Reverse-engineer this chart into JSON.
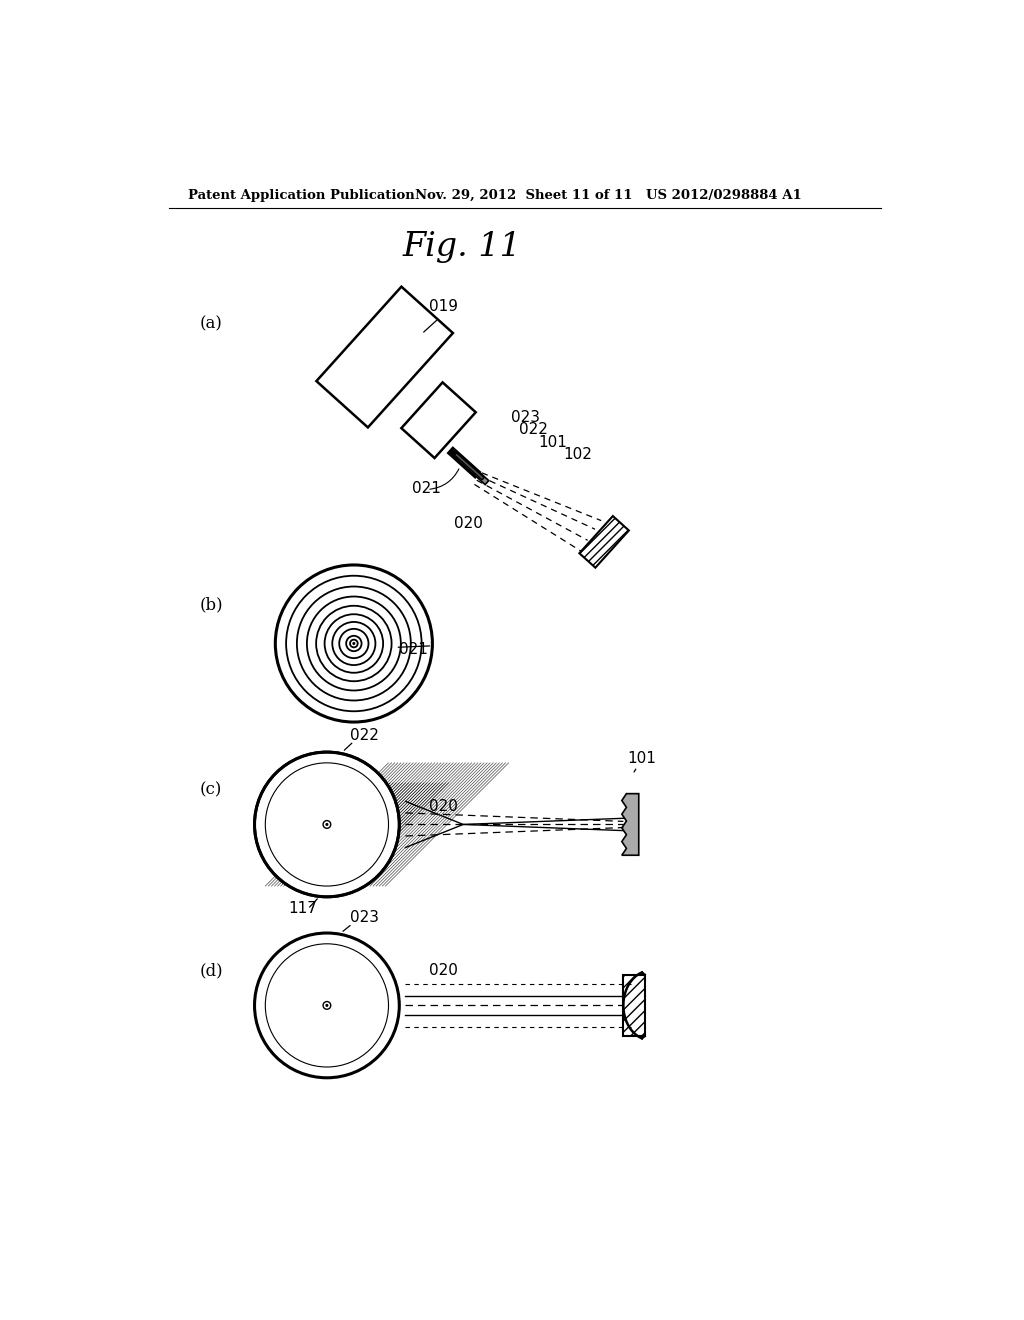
{
  "title": "Fig. 11",
  "header_left": "Patent Application Publication",
  "header_mid": "Nov. 29, 2012  Sheet 11 of 11",
  "header_right": "US 2012/0298884 A1",
  "bg_color": "#ffffff",
  "text_color": "#000000",
  "label_a": "(a)",
  "label_b": "(b)",
  "label_c": "(c)",
  "label_d": "(d)"
}
